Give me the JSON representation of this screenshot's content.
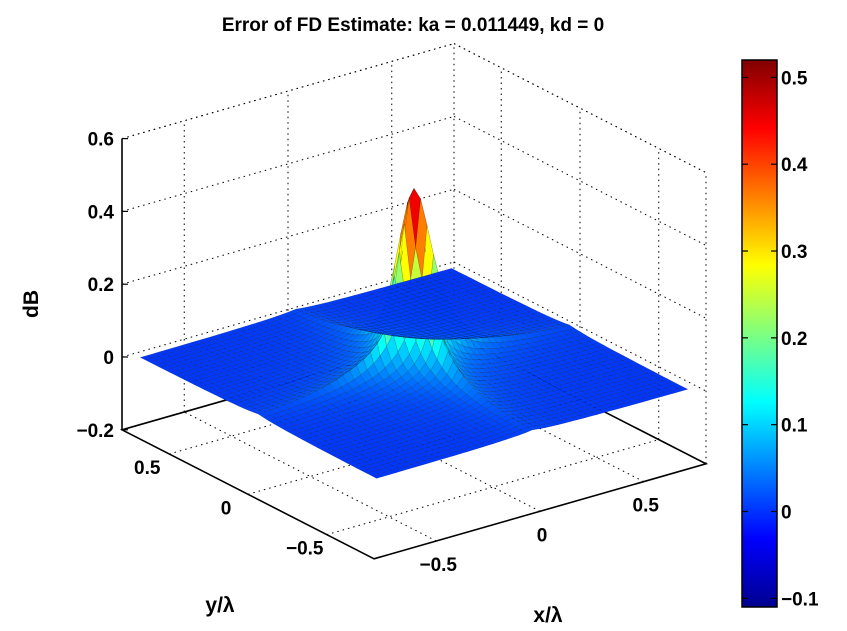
{
  "chart_data": {
    "type": "surface",
    "title": "Error of FD Estimate: ka = 0.011449, kd = 0",
    "xlabel": "x/λ",
    "ylabel": "y/λ",
    "zlabel": "dB",
    "xlim": [
      -0.8,
      0.8
    ],
    "ylim": [
      -0.8,
      0.8
    ],
    "zlim": [
      -0.2,
      0.6
    ],
    "x_ticks": [
      {
        "value": -0.5,
        "label": "−0.5"
      },
      {
        "value": 0,
        "label": "0"
      },
      {
        "value": 0.5,
        "label": "0.5"
      }
    ],
    "y_ticks": [
      {
        "value": -0.5,
        "label": "−0.5"
      },
      {
        "value": 0,
        "label": "0"
      },
      {
        "value": 0.5,
        "label": "0.5"
      }
    ],
    "z_ticks": [
      {
        "value": -0.2,
        "label": "−0.2"
      },
      {
        "value": 0,
        "label": "0"
      },
      {
        "value": 0.2,
        "label": "0.2"
      },
      {
        "value": 0.4,
        "label": "0.4"
      },
      {
        "value": 0.6,
        "label": "0.6"
      }
    ],
    "grid": true,
    "colormap": "jet",
    "surface": {
      "description": "sharp peak at origin over flat base near zero",
      "base_value": 0.0,
      "peak": {
        "x": 0,
        "y": 0,
        "z": 0.51
      },
      "grid_points_per_axis": 49
    },
    "colorbar": {
      "location": "right",
      "range": [
        -0.11,
        0.52
      ],
      "ticks": [
        {
          "value": -0.1,
          "label": "−0.1"
        },
        {
          "value": 0,
          "label": "0"
        },
        {
          "value": 0.1,
          "label": "0.1"
        },
        {
          "value": 0.2,
          "label": "0.2"
        },
        {
          "value": 0.3,
          "label": "0.3"
        },
        {
          "value": 0.4,
          "label": "0.4"
        },
        {
          "value": 0.5,
          "label": "0.5"
        }
      ]
    }
  }
}
